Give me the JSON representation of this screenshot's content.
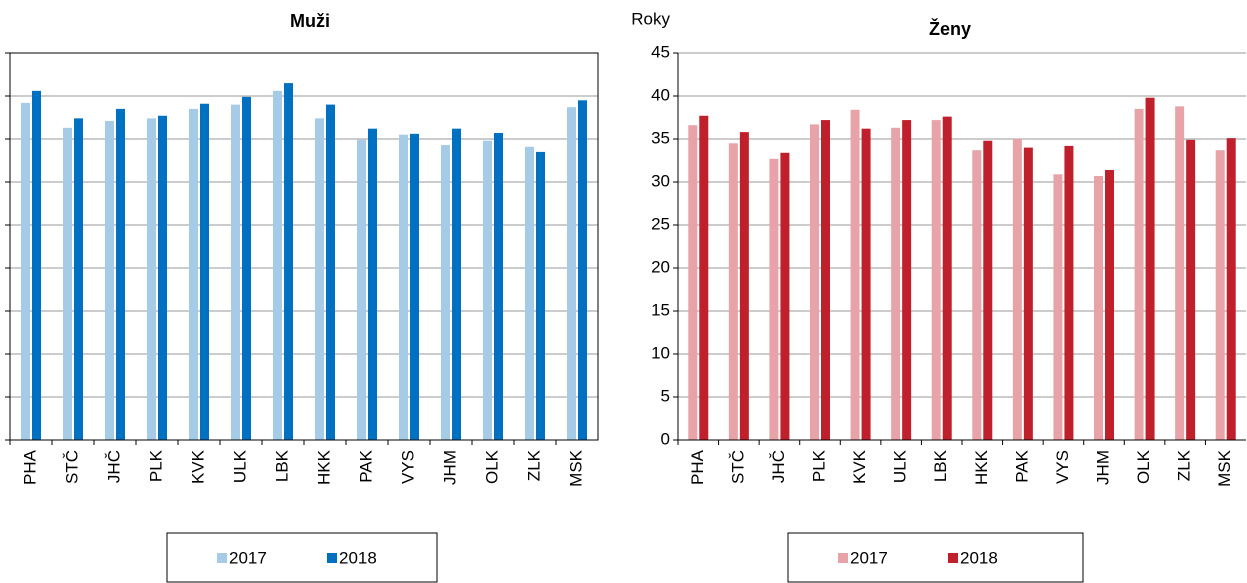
{
  "chart_data": [
    {
      "type": "bar",
      "title": "Muži",
      "categories": [
        "PHA",
        "STČ",
        "JHČ",
        "PLK",
        "KVK",
        "ULK",
        "LBK",
        "HKK",
        "PAK",
        "VYS",
        "JHM",
        "OLK",
        "ZLK",
        "MSK"
      ],
      "series": [
        {
          "name": "2017",
          "color": "#a6cbe6",
          "values": [
            39.2,
            36.3,
            37.1,
            37.4,
            38.5,
            39.0,
            40.6,
            37.4,
            34.9,
            35.5,
            34.3,
            34.8,
            34.1,
            38.7
          ]
        },
        {
          "name": "2018",
          "color": "#0070c0",
          "values": [
            40.6,
            37.4,
            38.5,
            37.7,
            39.1,
            39.9,
            41.5,
            39.0,
            36.2,
            35.6,
            36.2,
            35.7,
            33.5,
            39.5
          ]
        }
      ],
      "ylim": [
        0,
        45
      ],
      "yticks": [
        0,
        5,
        10,
        15,
        20,
        25,
        30,
        35,
        40,
        45
      ],
      "show_ytick_labels": false,
      "grid": true,
      "legend": "bottom"
    },
    {
      "type": "bar",
      "title": "Ženy",
      "y_label": "Roky",
      "categories": [
        "PHA",
        "STČ",
        "JHČ",
        "PLK",
        "KVK",
        "ULK",
        "LBK",
        "HKK",
        "PAK",
        "VYS",
        "JHM",
        "OLK",
        "ZLK",
        "MSK"
      ],
      "series": [
        {
          "name": "2017",
          "color": "#e8a3a8",
          "values": [
            36.6,
            34.5,
            32.7,
            36.7,
            38.4,
            36.3,
            37.2,
            33.7,
            35.0,
            30.9,
            30.7,
            38.5,
            38.8,
            33.7
          ]
        },
        {
          "name": "2018",
          "color": "#c0202b",
          "values": [
            37.7,
            35.8,
            33.4,
            37.2,
            36.2,
            37.2,
            37.6,
            34.8,
            34.0,
            34.2,
            31.4,
            39.8,
            34.9,
            35.1
          ]
        }
      ],
      "ylim": [
        0,
        45
      ],
      "yticks": [
        0,
        5,
        10,
        15,
        20,
        25,
        30,
        35,
        40,
        45
      ],
      "show_ytick_labels": true,
      "grid": true,
      "legend": "bottom"
    }
  ]
}
